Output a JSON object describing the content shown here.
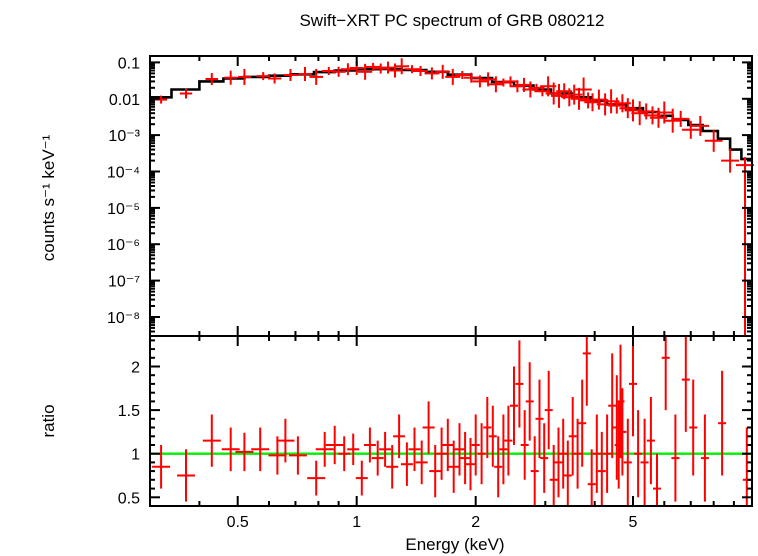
{
  "chart_data": [
    {
      "type": "line",
      "panel": "top",
      "title": "Swift−XRT PC spectrum of GRB 080212",
      "ylabel": "counts s⁻¹ keV⁻¹",
      "xlabel": "Energy (keV)",
      "xscale": "log",
      "yscale": "log",
      "xlim": [
        0.3,
        10
      ],
      "ylim": [
        3e-09,
        0.15
      ],
      "xticks": [
        {
          "value": 0.5,
          "label": "0.5"
        },
        {
          "value": 1,
          "label": "1"
        },
        {
          "value": 2,
          "label": "2"
        },
        {
          "value": 5,
          "label": "5"
        }
      ],
      "yticks": [
        {
          "value": 0.1,
          "label": "0.1"
        },
        {
          "value": 0.01,
          "label": "0.01"
        },
        {
          "value": 0.001,
          "label": "10⁻³"
        },
        {
          "value": 0.0001,
          "label": "10⁻⁴"
        },
        {
          "value": 1e-05,
          "label": "10⁻⁵"
        },
        {
          "value": 1e-06,
          "label": "10⁻⁶"
        },
        {
          "value": 1e-07,
          "label": "10⁻⁷"
        },
        {
          "value": 1e-08,
          "label": "10⁻⁸"
        }
      ],
      "series": [
        {
          "name": "data",
          "color": "#ff0000",
          "points": [
            {
              "x": 0.32,
              "y": 0.0095
            },
            {
              "x": 0.37,
              "y": 0.014
            },
            {
              "x": 0.43,
              "y": 0.035
            },
            {
              "x": 0.48,
              "y": 0.038
            },
            {
              "x": 0.52,
              "y": 0.04
            },
            {
              "x": 0.58,
              "y": 0.042
            },
            {
              "x": 0.62,
              "y": 0.036
            },
            {
              "x": 0.68,
              "y": 0.045
            },
            {
              "x": 0.74,
              "y": 0.048
            },
            {
              "x": 0.79,
              "y": 0.04
            },
            {
              "x": 0.85,
              "y": 0.058
            },
            {
              "x": 0.9,
              "y": 0.055
            },
            {
              "x": 0.95,
              "y": 0.065
            },
            {
              "x": 1.0,
              "y": 0.07
            },
            {
              "x": 1.05,
              "y": 0.055
            },
            {
              "x": 1.1,
              "y": 0.075
            },
            {
              "x": 1.15,
              "y": 0.068
            },
            {
              "x": 1.2,
              "y": 0.072
            },
            {
              "x": 1.25,
              "y": 0.06
            },
            {
              "x": 1.3,
              "y": 0.078
            },
            {
              "x": 1.38,
              "y": 0.065
            },
            {
              "x": 1.45,
              "y": 0.058
            },
            {
              "x": 1.55,
              "y": 0.05
            },
            {
              "x": 1.65,
              "y": 0.055
            },
            {
              "x": 1.75,
              "y": 0.04
            },
            {
              "x": 1.85,
              "y": 0.045
            },
            {
              "x": 1.95,
              "y": 0.038
            },
            {
              "x": 2.05,
              "y": 0.03
            },
            {
              "x": 2.15,
              "y": 0.034
            },
            {
              "x": 2.25,
              "y": 0.025
            },
            {
              "x": 2.35,
              "y": 0.028
            },
            {
              "x": 2.45,
              "y": 0.03
            },
            {
              "x": 2.55,
              "y": 0.022
            },
            {
              "x": 2.65,
              "y": 0.024
            },
            {
              "x": 2.75,
              "y": 0.018
            },
            {
              "x": 2.85,
              "y": 0.02
            },
            {
              "x": 2.95,
              "y": 0.016
            },
            {
              "x": 3.05,
              "y": 0.022
            },
            {
              "x": 3.15,
              "y": 0.014
            },
            {
              "x": 3.25,
              "y": 0.012
            },
            {
              "x": 3.35,
              "y": 0.016
            },
            {
              "x": 3.45,
              "y": 0.011
            },
            {
              "x": 3.55,
              "y": 0.013
            },
            {
              "x": 3.65,
              "y": 0.01
            },
            {
              "x": 3.75,
              "y": 0.018
            },
            {
              "x": 3.85,
              "y": 0.009
            },
            {
              "x": 3.95,
              "y": 0.008
            },
            {
              "x": 4.1,
              "y": 0.0095
            },
            {
              "x": 4.25,
              "y": 0.007
            },
            {
              "x": 4.4,
              "y": 0.0085
            },
            {
              "x": 4.55,
              "y": 0.0065
            },
            {
              "x": 4.7,
              "y": 0.0075
            },
            {
              "x": 4.85,
              "y": 0.0055
            },
            {
              "x": 5.0,
              "y": 0.0048
            },
            {
              "x": 5.2,
              "y": 0.004
            },
            {
              "x": 5.4,
              "y": 0.0045
            },
            {
              "x": 5.6,
              "y": 0.0035
            },
            {
              "x": 5.8,
              "y": 0.003
            },
            {
              "x": 6.0,
              "y": 0.0042
            },
            {
              "x": 6.3,
              "y": 0.0025
            },
            {
              "x": 6.6,
              "y": 0.0028
            },
            {
              "x": 7.0,
              "y": 0.0014
            },
            {
              "x": 7.4,
              "y": 0.0018
            },
            {
              "x": 8.0,
              "y": 0.0007
            },
            {
              "x": 8.8,
              "y": 0.0002
            },
            {
              "x": 9.6,
              "y": 0.00015
            }
          ]
        },
        {
          "name": "model",
          "color": "#000000",
          "step_edges": [
            0.3,
            0.34,
            0.4,
            0.46,
            0.52,
            0.6,
            0.68,
            0.78,
            0.88,
            1.0,
            1.15,
            1.3,
            1.5,
            1.7,
            1.95,
            2.2,
            2.5,
            2.8,
            3.1,
            3.5,
            3.9,
            4.3,
            4.8,
            5.3,
            5.8,
            6.3,
            6.9,
            7.5,
            8.2,
            8.8,
            9.4,
            10.0
          ],
          "values": [
            0.011,
            0.018,
            0.03,
            0.036,
            0.04,
            0.043,
            0.047,
            0.054,
            0.06,
            0.065,
            0.066,
            0.062,
            0.055,
            0.046,
            0.037,
            0.029,
            0.023,
            0.018,
            0.014,
            0.011,
            0.0088,
            0.007,
            0.0055,
            0.0043,
            0.0034,
            0.0026,
            0.0019,
            0.0013,
            0.0008,
            0.0004,
            0.00022
          ]
        }
      ]
    },
    {
      "type": "scatter",
      "panel": "bottom",
      "ylabel": "ratio",
      "xlabel": "Energy (keV)",
      "xscale": "log",
      "xlim": [
        0.3,
        10
      ],
      "ylim": [
        0.4,
        2.35
      ],
      "yticks": [
        {
          "value": 0.5,
          "label": "0.5"
        },
        {
          "value": 1,
          "label": "1"
        },
        {
          "value": 1.5,
          "label": "1.5"
        },
        {
          "value": 2,
          "label": "2"
        }
      ],
      "reference_line": {
        "y": 1,
        "color": "#00ee00"
      },
      "series": [
        {
          "name": "data/model",
          "color": "#ff0000",
          "points": [
            {
              "x": 0.32,
              "y": 0.85,
              "yerr": 0.25
            },
            {
              "x": 0.37,
              "y": 0.75,
              "yerr": 0.3
            },
            {
              "x": 0.43,
              "y": 1.15,
              "yerr": 0.3
            },
            {
              "x": 0.48,
              "y": 1.05,
              "yerr": 0.25
            },
            {
              "x": 0.52,
              "y": 1.02,
              "yerr": 0.22
            },
            {
              "x": 0.57,
              "y": 1.05,
              "yerr": 0.25
            },
            {
              "x": 0.63,
              "y": 0.98,
              "yerr": 0.22
            },
            {
              "x": 0.66,
              "y": 1.15,
              "yerr": 0.25
            },
            {
              "x": 0.71,
              "y": 0.98,
              "yerr": 0.22
            },
            {
              "x": 0.79,
              "y": 0.72,
              "yerr": 0.2
            },
            {
              "x": 0.83,
              "y": 1.05,
              "yerr": 0.2
            },
            {
              "x": 0.88,
              "y": 1.1,
              "yerr": 0.22
            },
            {
              "x": 0.93,
              "y": 1.0,
              "yerr": 0.2
            },
            {
              "x": 0.98,
              "y": 1.05,
              "yerr": 0.18
            },
            {
              "x": 1.03,
              "y": 0.72,
              "yerr": 0.2
            },
            {
              "x": 1.08,
              "y": 1.1,
              "yerr": 0.2
            },
            {
              "x": 1.13,
              "y": 0.95,
              "yerr": 0.2
            },
            {
              "x": 1.18,
              "y": 1.05,
              "yerr": 0.2
            },
            {
              "x": 1.23,
              "y": 0.85,
              "yerr": 0.25
            },
            {
              "x": 1.28,
              "y": 1.2,
              "yerr": 0.25
            },
            {
              "x": 1.34,
              "y": 0.88,
              "yerr": 0.25
            },
            {
              "x": 1.4,
              "y": 1.05,
              "yerr": 0.25
            },
            {
              "x": 1.46,
              "y": 0.9,
              "yerr": 0.25
            },
            {
              "x": 1.52,
              "y": 1.3,
              "yerr": 0.3
            },
            {
              "x": 1.58,
              "y": 0.8,
              "yerr": 0.3
            },
            {
              "x": 1.64,
              "y": 1.0,
              "yerr": 0.3
            },
            {
              "x": 1.7,
              "y": 1.1,
              "yerr": 0.3
            },
            {
              "x": 1.76,
              "y": 0.85,
              "yerr": 0.3
            },
            {
              "x": 1.82,
              "y": 1.05,
              "yerr": 0.3
            },
            {
              "x": 1.88,
              "y": 0.95,
              "yerr": 0.3
            },
            {
              "x": 1.94,
              "y": 0.88,
              "yerr": 0.3
            },
            {
              "x": 2.0,
              "y": 1.1,
              "yerr": 0.35
            },
            {
              "x": 2.07,
              "y": 1.0,
              "yerr": 0.35
            },
            {
              "x": 2.14,
              "y": 1.3,
              "yerr": 0.35
            },
            {
              "x": 2.21,
              "y": 1.2,
              "yerr": 0.35
            },
            {
              "x": 2.28,
              "y": 0.85,
              "yerr": 0.35
            },
            {
              "x": 2.35,
              "y": 1.05,
              "yerr": 0.4
            },
            {
              "x": 2.42,
              "y": 1.15,
              "yerr": 0.4
            },
            {
              "x": 2.5,
              "y": 1.55,
              "yerr": 0.45
            },
            {
              "x": 2.58,
              "y": 1.8,
              "yerr": 0.5
            },
            {
              "x": 2.66,
              "y": 1.1,
              "yerr": 0.4
            },
            {
              "x": 2.74,
              "y": 1.6,
              "yerr": 0.45
            },
            {
              "x": 2.82,
              "y": 0.8,
              "yerr": 0.4
            },
            {
              "x": 2.9,
              "y": 1.4,
              "yerr": 0.45
            },
            {
              "x": 2.98,
              "y": 0.95,
              "yerr": 0.4
            },
            {
              "x": 3.06,
              "y": 1.5,
              "yerr": 0.45
            },
            {
              "x": 3.15,
              "y": 0.7,
              "yerr": 0.4
            },
            {
              "x": 3.24,
              "y": 0.9,
              "yerr": 0.4
            },
            {
              "x": 3.33,
              "y": 1.0,
              "yerr": 0.4
            },
            {
              "x": 3.42,
              "y": 0.75,
              "yerr": 0.4
            },
            {
              "x": 3.52,
              "y": 1.2,
              "yerr": 0.45
            },
            {
              "x": 3.62,
              "y": 1.0,
              "yerr": 0.4
            },
            {
              "x": 3.72,
              "y": 1.35,
              "yerr": 0.5
            },
            {
              "x": 3.82,
              "y": 2.15,
              "yerr": 0.6
            },
            {
              "x": 3.93,
              "y": 0.65,
              "yerr": 0.4
            },
            {
              "x": 4.05,
              "y": 1.0,
              "yerr": 0.45
            },
            {
              "x": 4.17,
              "y": 0.8,
              "yerr": 0.45
            },
            {
              "x": 4.3,
              "y": 1.0,
              "yerr": 0.45
            },
            {
              "x": 4.43,
              "y": 1.55,
              "yerr": 0.6
            },
            {
              "x": 4.55,
              "y": 1.3,
              "yerr": 0.6
            },
            {
              "x": 4.6,
              "y": 1.1,
              "yerr": 0.5
            },
            {
              "x": 4.65,
              "y": 1.6,
              "yerr": 0.65
            },
            {
              "x": 4.7,
              "y": 1.25,
              "yerr": 0.5
            },
            {
              "x": 4.85,
              "y": 0.9,
              "yerr": 0.5
            },
            {
              "x": 5.0,
              "y": 1.8,
              "yerr": 0.6
            },
            {
              "x": 5.15,
              "y": 1.0,
              "yerr": 0.5
            },
            {
              "x": 5.35,
              "y": 0.9,
              "yerr": 0.5
            },
            {
              "x": 5.55,
              "y": 1.15,
              "yerr": 0.5
            },
            {
              "x": 5.75,
              "y": 0.6,
              "yerr": 0.4
            },
            {
              "x": 6.05,
              "y": 2.1,
              "yerr": 0.6
            },
            {
              "x": 6.4,
              "y": 0.95,
              "yerr": 0.5
            },
            {
              "x": 6.8,
              "y": 1.85,
              "yerr": 0.6
            },
            {
              "x": 7.1,
              "y": 1.3,
              "yerr": 0.55
            },
            {
              "x": 7.6,
              "y": 0.95,
              "yerr": 0.5
            },
            {
              "x": 8.4,
              "y": 1.35,
              "yerr": 0.6
            },
            {
              "x": 9.7,
              "y": 0.7,
              "yerr": 0.6
            }
          ]
        }
      ]
    }
  ]
}
